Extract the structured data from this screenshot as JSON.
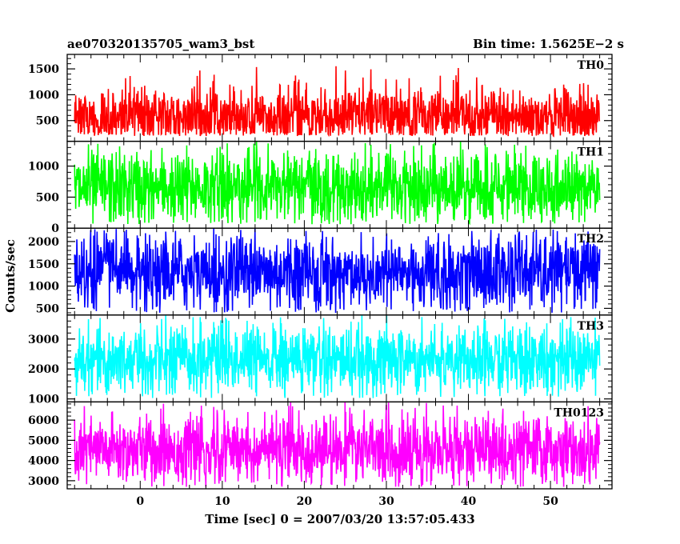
{
  "chart_data": {
    "type": "line",
    "title_left": "ae070320135705_wam3_bst",
    "title_right": "Bin time: 1.5625E−2 s",
    "xlabel": "Time [sec] 0 = 2007/03/20 13:57:05.433",
    "ylabel": "Counts/sec",
    "xlim": [
      -8.9,
      57.5
    ],
    "x_range_data": [
      -8.0,
      56.0
    ],
    "xticks": [
      0,
      10,
      20,
      30,
      40,
      50
    ],
    "xtick_labels": [
      "0",
      "10",
      "20",
      "30",
      "40",
      "50"
    ],
    "x_minor_step": 2,
    "grid": false,
    "legend": "none",
    "panels": [
      {
        "label": "TH0",
        "color": "#ff0000",
        "ylim": [
          100,
          1780
        ],
        "yticks": [
          500,
          1000,
          1500
        ],
        "ytick_labels": [
          "500",
          "1000",
          "1500"
        ],
        "y_minor_step": 100,
        "mean": 570,
        "sigma": 300,
        "min": 200,
        "max": 1780
      },
      {
        "label": "TH1",
        "color": "#00ff00",
        "ylim": [
          0,
          1400
        ],
        "yticks": [
          0,
          500,
          1000
        ],
        "ytick_labels": [
          "0",
          "500",
          "1000"
        ],
        "y_minor_step": 100,
        "mean": 650,
        "sigma": 300,
        "min": 60,
        "max": 1400
      },
      {
        "label": "TH2",
        "color": "#0000ff",
        "ylim": [
          350,
          2300
        ],
        "yticks": [
          500,
          1000,
          1500,
          2000
        ],
        "ytick_labels": [
          "500",
          "1000",
          "1500",
          "2000"
        ],
        "y_minor_step": 100,
        "mean": 1300,
        "sigma": 450,
        "min": 400,
        "max": 2300
      },
      {
        "label": "TH3",
        "color": "#00ffff",
        "ylim": [
          900,
          3800
        ],
        "yticks": [
          1000,
          2000,
          3000
        ],
        "ytick_labels": [
          "1000",
          "2000",
          "3000"
        ],
        "y_minor_step": 200,
        "mean": 2300,
        "sigma": 600,
        "min": 1000,
        "max": 3800
      },
      {
        "label": "TH0123",
        "color": "#ff00ff",
        "ylim": [
          2600,
          6900
        ],
        "yticks": [
          3000,
          4000,
          5000,
          6000
        ],
        "ytick_labels": [
          "3000",
          "4000",
          "5000",
          "6000"
        ],
        "y_minor_step": 200,
        "mean": 4500,
        "sigma": 850,
        "min": 2700,
        "max": 6900
      }
    ]
  }
}
